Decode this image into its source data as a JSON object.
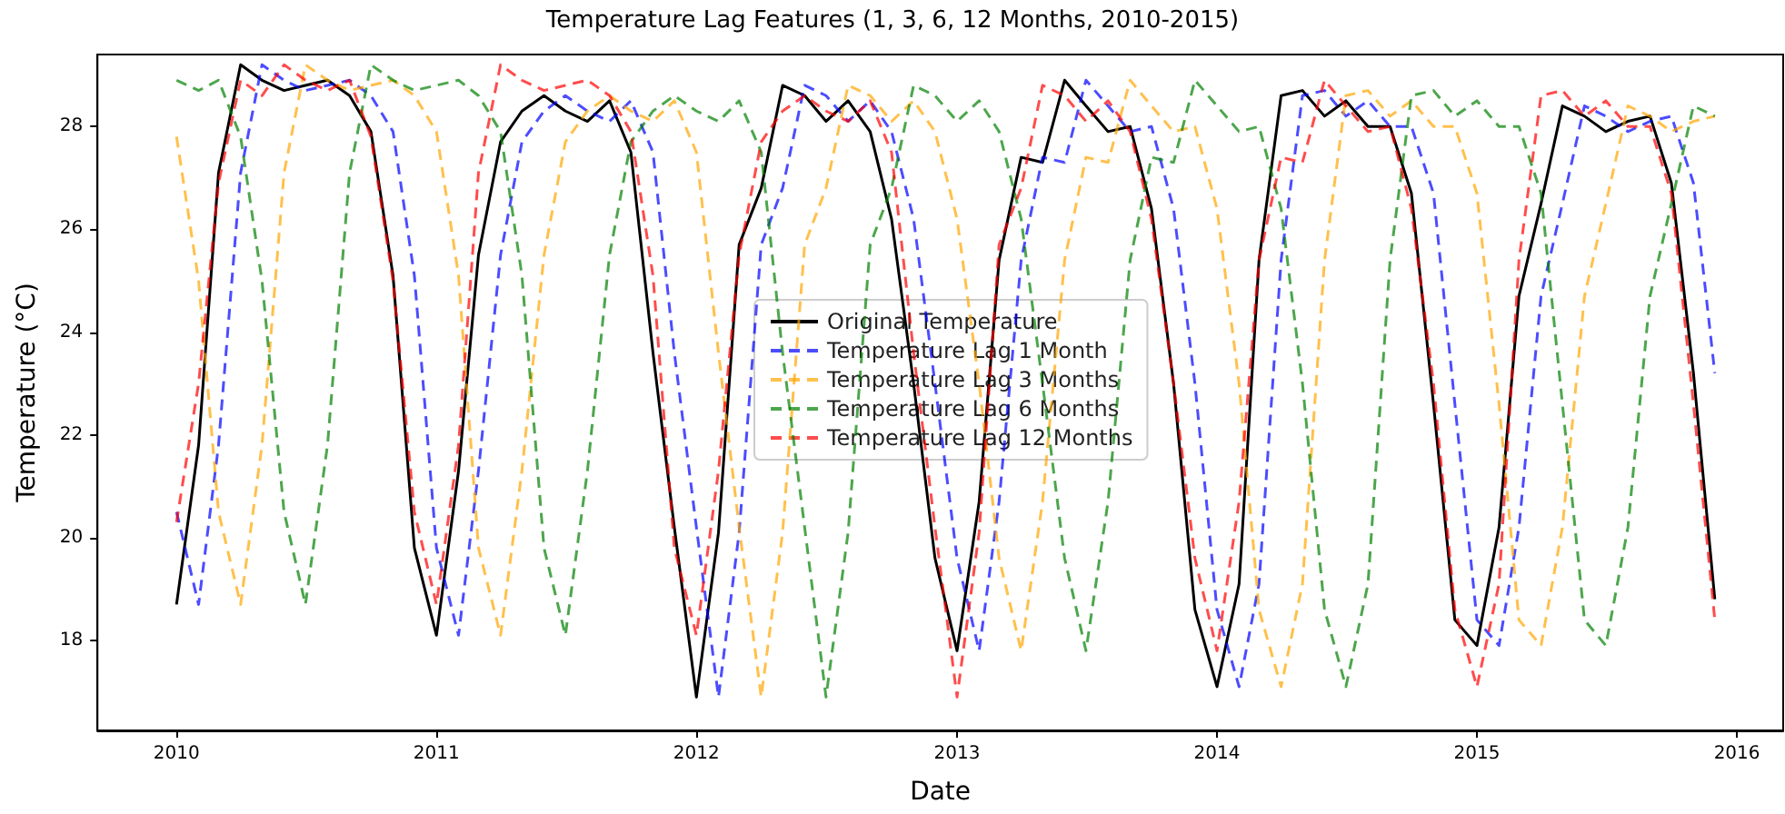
{
  "chart_data": {
    "type": "line",
    "title": "Temperature Lag Features (1, 3, 6, 12 Months, 2010-2015)",
    "xlabel": "Date",
    "ylabel": "Temperature (°C)",
    "x": [
      "2010-01",
      "2010-02",
      "2010-03",
      "2010-04",
      "2010-05",
      "2010-06",
      "2010-07",
      "2010-08",
      "2010-09",
      "2010-10",
      "2010-11",
      "2010-12",
      "2011-01",
      "2011-02",
      "2011-03",
      "2011-04",
      "2011-05",
      "2011-06",
      "2011-07",
      "2011-08",
      "2011-09",
      "2011-10",
      "2011-11",
      "2011-12",
      "2012-01",
      "2012-02",
      "2012-03",
      "2012-04",
      "2012-05",
      "2012-06",
      "2012-07",
      "2012-08",
      "2012-09",
      "2012-10",
      "2012-11",
      "2012-12",
      "2013-01",
      "2013-02",
      "2013-03",
      "2013-04",
      "2013-05",
      "2013-06",
      "2013-07",
      "2013-08",
      "2013-09",
      "2013-10",
      "2013-11",
      "2013-12",
      "2014-01",
      "2014-02",
      "2014-03",
      "2014-04",
      "2014-05",
      "2014-06",
      "2014-07",
      "2014-08",
      "2014-09",
      "2014-10",
      "2014-11",
      "2014-12",
      "2015-01",
      "2015-02",
      "2015-03",
      "2015-04",
      "2015-05",
      "2015-06",
      "2015-07",
      "2015-08",
      "2015-09",
      "2015-10",
      "2015-11",
      "2015-12"
    ],
    "series": [
      {
        "name": "Original Temperature",
        "color": "#000000",
        "line_style": "solid",
        "values": [
          18.7,
          21.8,
          27.1,
          29.2,
          28.9,
          28.7,
          28.8,
          28.9,
          28.6,
          27.9,
          25.1,
          19.8,
          18.1,
          21.3,
          25.5,
          27.7,
          28.3,
          28.6,
          28.3,
          28.1,
          28.5,
          27.5,
          23.6,
          20.2,
          16.9,
          20.1,
          25.7,
          26.8,
          28.8,
          28.6,
          28.1,
          28.5,
          27.9,
          26.2,
          23.0,
          19.6,
          17.8,
          20.7,
          25.4,
          27.4,
          27.3,
          28.9,
          28.4,
          27.9,
          28.0,
          26.4,
          23.0,
          18.6,
          17.1,
          19.1,
          25.4,
          28.6,
          28.7,
          28.2,
          28.5,
          28.0,
          28.0,
          26.7,
          22.6,
          18.4,
          17.9,
          20.2,
          24.7,
          26.5,
          28.4,
          28.2,
          27.9,
          28.1,
          28.2,
          26.9,
          23.2,
          18.8
        ]
      },
      {
        "name": "Temperature Lag 1 Month",
        "color": "#0000ff",
        "line_style": "dashed",
        "values": [
          20.5,
          18.7,
          21.8,
          27.1,
          29.2,
          28.9,
          28.7,
          28.8,
          28.9,
          28.6,
          27.9,
          25.1,
          19.8,
          18.1,
          21.3,
          25.5,
          27.7,
          28.3,
          28.6,
          28.3,
          28.1,
          28.5,
          27.5,
          23.6,
          20.2,
          16.9,
          20.1,
          25.7,
          26.8,
          28.8,
          28.6,
          28.1,
          28.5,
          27.9,
          26.2,
          23.0,
          19.6,
          17.8,
          20.7,
          25.4,
          27.4,
          27.3,
          28.9,
          28.4,
          27.9,
          28.0,
          26.4,
          23.0,
          18.6,
          17.1,
          19.1,
          25.4,
          28.6,
          28.7,
          28.2,
          28.5,
          28.0,
          28.0,
          26.7,
          22.6,
          18.4,
          17.9,
          20.2,
          24.7,
          26.5,
          28.4,
          28.2,
          27.9,
          28.1,
          28.2,
          26.9,
          23.2
        ]
      },
      {
        "name": "Temperature Lag 3 Months",
        "color": "#ffa500",
        "line_style": "dashed",
        "values": [
          27.8,
          25.0,
          20.5,
          18.7,
          21.8,
          27.1,
          29.2,
          28.9,
          28.7,
          28.8,
          28.9,
          28.6,
          27.9,
          25.1,
          19.8,
          18.1,
          21.3,
          25.5,
          27.7,
          28.3,
          28.6,
          28.3,
          28.1,
          28.5,
          27.5,
          23.6,
          20.2,
          16.9,
          20.1,
          25.7,
          26.8,
          28.8,
          28.6,
          28.1,
          28.5,
          27.9,
          26.2,
          23.0,
          19.6,
          17.8,
          20.7,
          25.4,
          27.4,
          27.3,
          28.9,
          28.4,
          27.9,
          28.0,
          26.4,
          23.0,
          18.6,
          17.1,
          19.1,
          25.4,
          28.6,
          28.7,
          28.2,
          28.5,
          28.0,
          28.0,
          26.7,
          22.6,
          18.4,
          17.9,
          20.2,
          24.7,
          26.5,
          28.4,
          28.2,
          27.9,
          28.1,
          28.2
        ]
      },
      {
        "name": "Temperature Lag 6 Months",
        "color": "#008000",
        "line_style": "dashed",
        "values": [
          28.9,
          28.7,
          28.9,
          27.8,
          25.0,
          20.5,
          18.7,
          21.8,
          27.1,
          29.2,
          28.9,
          28.7,
          28.8,
          28.9,
          28.6,
          27.9,
          25.1,
          19.8,
          18.1,
          21.3,
          25.5,
          27.7,
          28.3,
          28.6,
          28.3,
          28.1,
          28.5,
          27.5,
          23.6,
          20.2,
          16.9,
          20.1,
          25.7,
          26.8,
          28.8,
          28.6,
          28.1,
          28.5,
          27.9,
          26.2,
          23.0,
          19.6,
          17.8,
          20.7,
          25.4,
          27.4,
          27.3,
          28.9,
          28.4,
          27.9,
          28.0,
          26.4,
          23.0,
          18.6,
          17.1,
          19.1,
          25.4,
          28.6,
          28.7,
          28.2,
          28.5,
          28.0,
          28.0,
          26.7,
          22.6,
          18.4,
          17.9,
          20.2,
          24.7,
          26.5,
          28.4,
          28.2
        ]
      },
      {
        "name": "Temperature Lag 12 Months",
        "color": "#ff0000",
        "line_style": "dashed",
        "values": [
          20.3,
          23.0,
          26.9,
          28.9,
          28.6,
          29.2,
          28.9,
          28.7,
          28.9,
          27.8,
          25.0,
          20.5,
          18.7,
          21.8,
          27.1,
          29.2,
          28.9,
          28.7,
          28.8,
          28.9,
          28.6,
          27.9,
          25.1,
          19.8,
          18.1,
          21.3,
          25.5,
          27.7,
          28.3,
          28.6,
          28.3,
          28.1,
          28.5,
          27.5,
          23.6,
          20.2,
          16.9,
          20.1,
          25.7,
          26.8,
          28.8,
          28.6,
          28.1,
          28.5,
          27.9,
          26.2,
          23.0,
          19.6,
          17.8,
          20.7,
          25.4,
          27.4,
          27.3,
          28.9,
          28.4,
          27.9,
          28.0,
          26.4,
          23.0,
          18.6,
          17.1,
          19.1,
          25.4,
          28.6,
          28.7,
          28.2,
          28.5,
          28.0,
          28.0,
          26.7,
          22.6,
          18.4
        ]
      }
    ],
    "xlim": [
      "2009-09-12",
      "2016-03-06"
    ],
    "xticks": [
      "2010",
      "2011",
      "2012",
      "2013",
      "2014",
      "2015",
      "2016"
    ],
    "ylim": [
      16.25,
      29.4
    ],
    "yticks": [
      18,
      20,
      22,
      24,
      26,
      28
    ],
    "legend": "center",
    "marker": "none",
    "grid": false
  }
}
